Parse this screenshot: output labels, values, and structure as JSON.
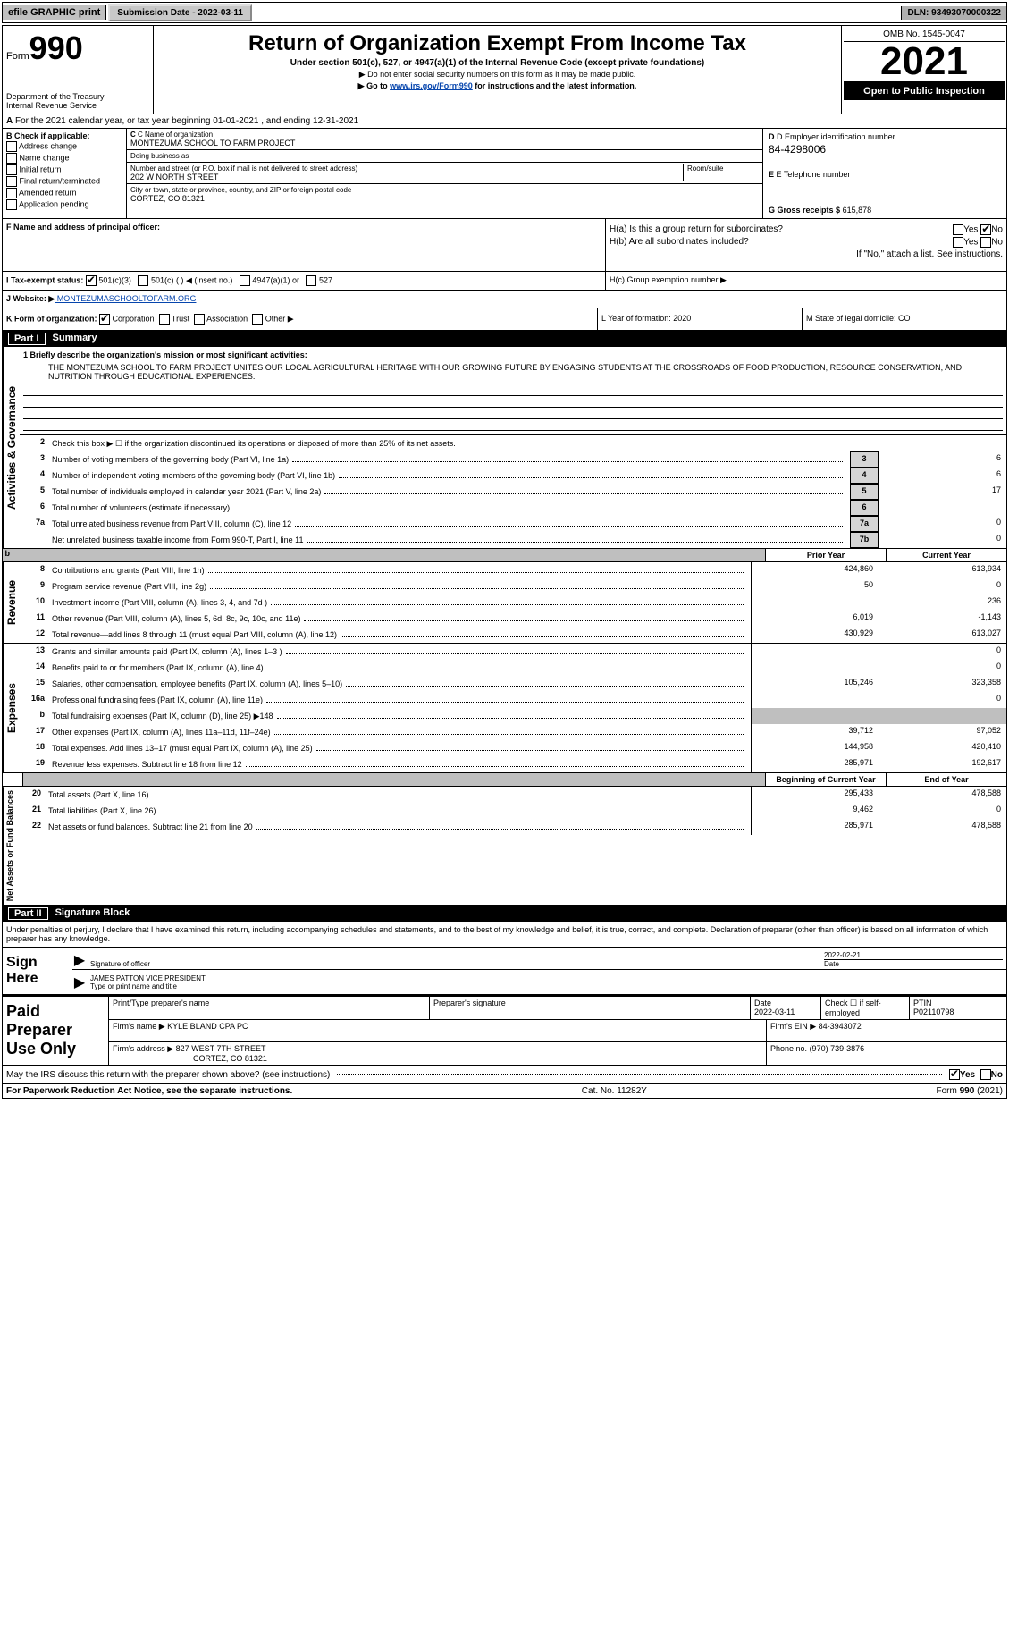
{
  "topbar": {
    "efile": "efile GRAPHIC print",
    "submission": "Submission Date - 2022-03-11",
    "dln": "DLN: 93493070000322"
  },
  "header": {
    "form_prefix": "Form",
    "form_number": "990",
    "dept1": "Department of the Treasury",
    "dept2": "Internal Revenue Service",
    "title": "Return of Organization Exempt From Income Tax",
    "subtitle": "Under section 501(c), 527, or 4947(a)(1) of the Internal Revenue Code (except private foundations)",
    "note1": "▶ Do not enter social security numbers on this form as it may be made public.",
    "note2_pre": "▶ Go to ",
    "note2_link": "www.irs.gov/Form990",
    "note2_post": " for instructions and the latest information.",
    "omb": "OMB No. 1545-0047",
    "year": "2021",
    "open": "Open to Public Inspection"
  },
  "rowA": "For the 2021 calendar year, or tax year beginning 01-01-2021     , and ending 12-31-2021",
  "secB": {
    "heading": "B Check if applicable:",
    "opts": [
      "Address change",
      "Name change",
      "Initial return",
      "Final return/terminated",
      "Amended return",
      "Application pending"
    ]
  },
  "secC": {
    "name_label": "C Name of organization",
    "name": "MONTEZUMA SCHOOL TO FARM PROJECT",
    "dba_label": "Doing business as",
    "addr_label": "Number and street (or P.O. box if mail is not delivered to street address)",
    "room_label": "Room/suite",
    "addr": "202 W NORTH STREET",
    "city_label": "City or town, state or province, country, and ZIP or foreign postal code",
    "city": "CORTEZ, CO  81321"
  },
  "secD": {
    "ein_label": "D Employer identification number",
    "ein": "84-4298006",
    "tel_label": "E Telephone number",
    "gross_label": "G Gross receipts $",
    "gross": "615,878"
  },
  "rowF": {
    "label": "F  Name and address of principal officer:"
  },
  "rowH": {
    "ha": "H(a)  Is this a group return for subordinates?",
    "hb": "H(b)  Are all subordinates included?",
    "hb_note": "If \"No,\" attach a list. See instructions.",
    "hc": "H(c)  Group exemption number ▶"
  },
  "rowI": {
    "label": "I    Tax-exempt status:",
    "o1": "501(c)(3)",
    "o2": "501(c) (   ) ◀ (insert no.)",
    "o3": "4947(a)(1) or",
    "o4": "527"
  },
  "rowJ": {
    "label": "J   Website: ▶",
    "val": " MONTEZUMASCHOOLTOFARM.ORG"
  },
  "rowK": {
    "label": "K Form of organization:",
    "o1": "Corporation",
    "o2": "Trust",
    "o3": "Association",
    "o4": "Other ▶"
  },
  "rowL": {
    "text": "L Year of formation: 2020"
  },
  "rowM": {
    "text": "M State of legal domicile: CO"
  },
  "part1": {
    "num": "Part I",
    "title": "Summary",
    "l1_label": "1  Briefly describe the organization's mission or most significant activities:",
    "mission": "THE MONTEZUMA SCHOOL TO FARM PROJECT UNITES OUR LOCAL AGRICULTURAL HERITAGE WITH OUR GROWING FUTURE BY ENGAGING STUDENTS AT THE CROSSROADS OF FOOD PRODUCTION, RESOURCE CONSERVATION, AND NUTRITION THROUGH EDUCATIONAL EXPERIENCES.",
    "l2": "Check this box ▶ ☐  if the organization discontinued its operations or disposed of more than 25% of its net assets.",
    "rows_ag": [
      {
        "n": "3",
        "d": "Number of voting members of the governing body (Part VI, line 1a)",
        "b": "3",
        "v": "6"
      },
      {
        "n": "4",
        "d": "Number of independent voting members of the governing body (Part VI, line 1b)",
        "b": "4",
        "v": "6"
      },
      {
        "n": "5",
        "d": "Total number of individuals employed in calendar year 2021 (Part V, line 2a)",
        "b": "5",
        "v": "17"
      },
      {
        "n": "6",
        "d": "Total number of volunteers (estimate if necessary)",
        "b": "6",
        "v": ""
      },
      {
        "n": "7a",
        "d": "Total unrelated business revenue from Part VIII, column (C), line 12",
        "b": "7a",
        "v": "0"
      },
      {
        "n": "",
        "d": "Net unrelated business taxable income from Form 990-T, Part I, line 11",
        "b": "7b",
        "v": "0"
      }
    ],
    "col_prior": "Prior Year",
    "col_curr": "Current Year",
    "rows_rev": [
      {
        "n": "8",
        "d": "Contributions and grants (Part VIII, line 1h)",
        "p": "424,860",
        "c": "613,934"
      },
      {
        "n": "9",
        "d": "Program service revenue (Part VIII, line 2g)",
        "p": "50",
        "c": "0"
      },
      {
        "n": "10",
        "d": "Investment income (Part VIII, column (A), lines 3, 4, and 7d )",
        "p": "",
        "c": "236"
      },
      {
        "n": "11",
        "d": "Other revenue (Part VIII, column (A), lines 5, 6d, 8c, 9c, 10c, and 11e)",
        "p": "6,019",
        "c": "-1,143"
      },
      {
        "n": "12",
        "d": "Total revenue—add lines 8 through 11 (must equal Part VIII, column (A), line 12)",
        "p": "430,929",
        "c": "613,027"
      }
    ],
    "rows_exp": [
      {
        "n": "13",
        "d": "Grants and similar amounts paid (Part IX, column (A), lines 1–3 )",
        "p": "",
        "c": "0"
      },
      {
        "n": "14",
        "d": "Benefits paid to or for members (Part IX, column (A), line 4)",
        "p": "",
        "c": "0"
      },
      {
        "n": "15",
        "d": "Salaries, other compensation, employee benefits (Part IX, column (A), lines 5–10)",
        "p": "105,246",
        "c": "323,358"
      },
      {
        "n": "16a",
        "d": "Professional fundraising fees (Part IX, column (A), line 11e)",
        "p": "",
        "c": "0"
      },
      {
        "n": "b",
        "d": "Total fundraising expenses (Part IX, column (D), line 25) ▶148",
        "p": "__SHADED__",
        "c": "__SHADED__"
      },
      {
        "n": "17",
        "d": "Other expenses (Part IX, column (A), lines 11a–11d, 11f–24e)",
        "p": "39,712",
        "c": "97,052"
      },
      {
        "n": "18",
        "d": "Total expenses. Add lines 13–17 (must equal Part IX, column (A), line 25)",
        "p": "144,958",
        "c": "420,410"
      },
      {
        "n": "19",
        "d": "Revenue less expenses. Subtract line 18 from line 12",
        "p": "285,971",
        "c": "192,617"
      }
    ],
    "col_begin": "Beginning of Current Year",
    "col_end": "End of Year",
    "rows_net": [
      {
        "n": "20",
        "d": "Total assets (Part X, line 16)",
        "p": "295,433",
        "c": "478,588"
      },
      {
        "n": "21",
        "d": "Total liabilities (Part X, line 26)",
        "p": "9,462",
        "c": "0"
      },
      {
        "n": "22",
        "d": "Net assets or fund balances. Subtract line 21 from line 20",
        "p": "285,971",
        "c": "478,588"
      }
    ],
    "side_ag": "Activities & Governance",
    "side_rev": "Revenue",
    "side_exp": "Expenses",
    "side_net": "Net Assets or Fund Balances",
    "b_label": "b"
  },
  "part2": {
    "num": "Part II",
    "title": "Signature Block",
    "perjury": "Under penalties of perjury, I declare that I have examined this return, including accompanying schedules and statements, and to the best of my knowledge and belief, it is true, correct, and complete. Declaration of preparer (other than officer) is based on all information of which preparer has any knowledge.",
    "sign_here": "Sign Here",
    "sig_officer": "Signature of officer",
    "sig_date": "2022-02-21",
    "date_label": "Date",
    "officer_name": "JAMES PATTON  VICE PRESIDENT",
    "name_label": "Type or print name and title",
    "paid": "Paid Preparer Use Only",
    "prep_name_label": "Print/Type preparer's name",
    "prep_sig_label": "Preparer's signature",
    "prep_date_label": "Date",
    "prep_date": "2022-03-11",
    "check_label": "Check ☐ if self-employed",
    "ptin_label": "PTIN",
    "ptin": "P02110798",
    "firm_name_label": "Firm's name    ▶",
    "firm_name": "KYLE BLAND CPA PC",
    "firm_ein_label": "Firm's EIN ▶",
    "firm_ein": "84-3943072",
    "firm_addr_label": "Firm's address ▶",
    "firm_addr1": "827 WEST 7TH STREET",
    "firm_addr2": "CORTEZ, CO  81321",
    "phone_label": "Phone no.",
    "phone": "(970) 739-3876",
    "may_irs": "May the IRS discuss this return with the preparer shown above? (see instructions)",
    "yes": "Yes",
    "no": "No"
  },
  "footer": {
    "left": "For Paperwork Reduction Act Notice, see the separate instructions.",
    "mid": "Cat. No. 11282Y",
    "right": "Form 990 (2021)"
  },
  "boldb": "b",
  "rowHyn": {
    "yes": "Yes",
    "no": "No"
  }
}
